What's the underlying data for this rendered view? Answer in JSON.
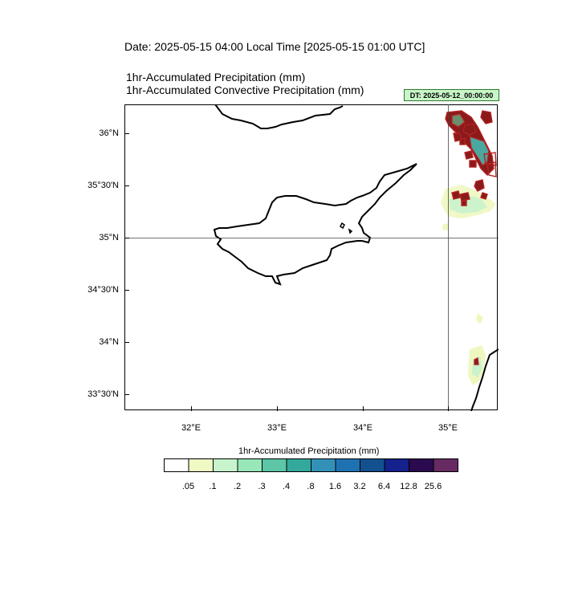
{
  "header": {
    "date_line": "Date: 2025-05-15  04:00 Local Time [2025-05-15  01:00 UTC]",
    "title_1": "1hr-Accumulated Precipitation   (mm)",
    "title_2": "1hr-Accumulated Convective Precipitation   (mm)",
    "dt_badge": "DT: 2025-05-12_00:00:00",
    "dt_badge_color": "#c8f5c8"
  },
  "map": {
    "region": "Cyprus",
    "lat_labels": [
      "36°N",
      "35°30'N",
      "35°N",
      "34°30'N",
      "34°N",
      "33°30'N"
    ],
    "lon_labels": [
      "32°E",
      "33°E",
      "34°E",
      "35°E"
    ],
    "reference_lines": {
      "lat": 35.0,
      "lon": 35.0
    },
    "precip_feature_colors": {
      "light": "#eef7c0",
      "medium": "#c9f2cc",
      "convective_outline": "#b22222",
      "convective_fill": "#8b1a1a",
      "core": "#4aa8a0"
    }
  },
  "colorbar": {
    "title": "1hr-Accumulated Precipitation  (mm)",
    "colors": [
      "#ffffff",
      "#eff9c3",
      "#c7f4cd",
      "#97e7b9",
      "#5cc6a6",
      "#33a99b",
      "#3391b8",
      "#1f72b2",
      "#13508f",
      "#15218c",
      "#2b0a4f",
      "#672a62"
    ],
    "labels": [
      ".05",
      ".1",
      ".2",
      ".3",
      ".4",
      ".8",
      "1.6",
      "3.2",
      "6.4",
      "12.8",
      "25.6"
    ]
  }
}
